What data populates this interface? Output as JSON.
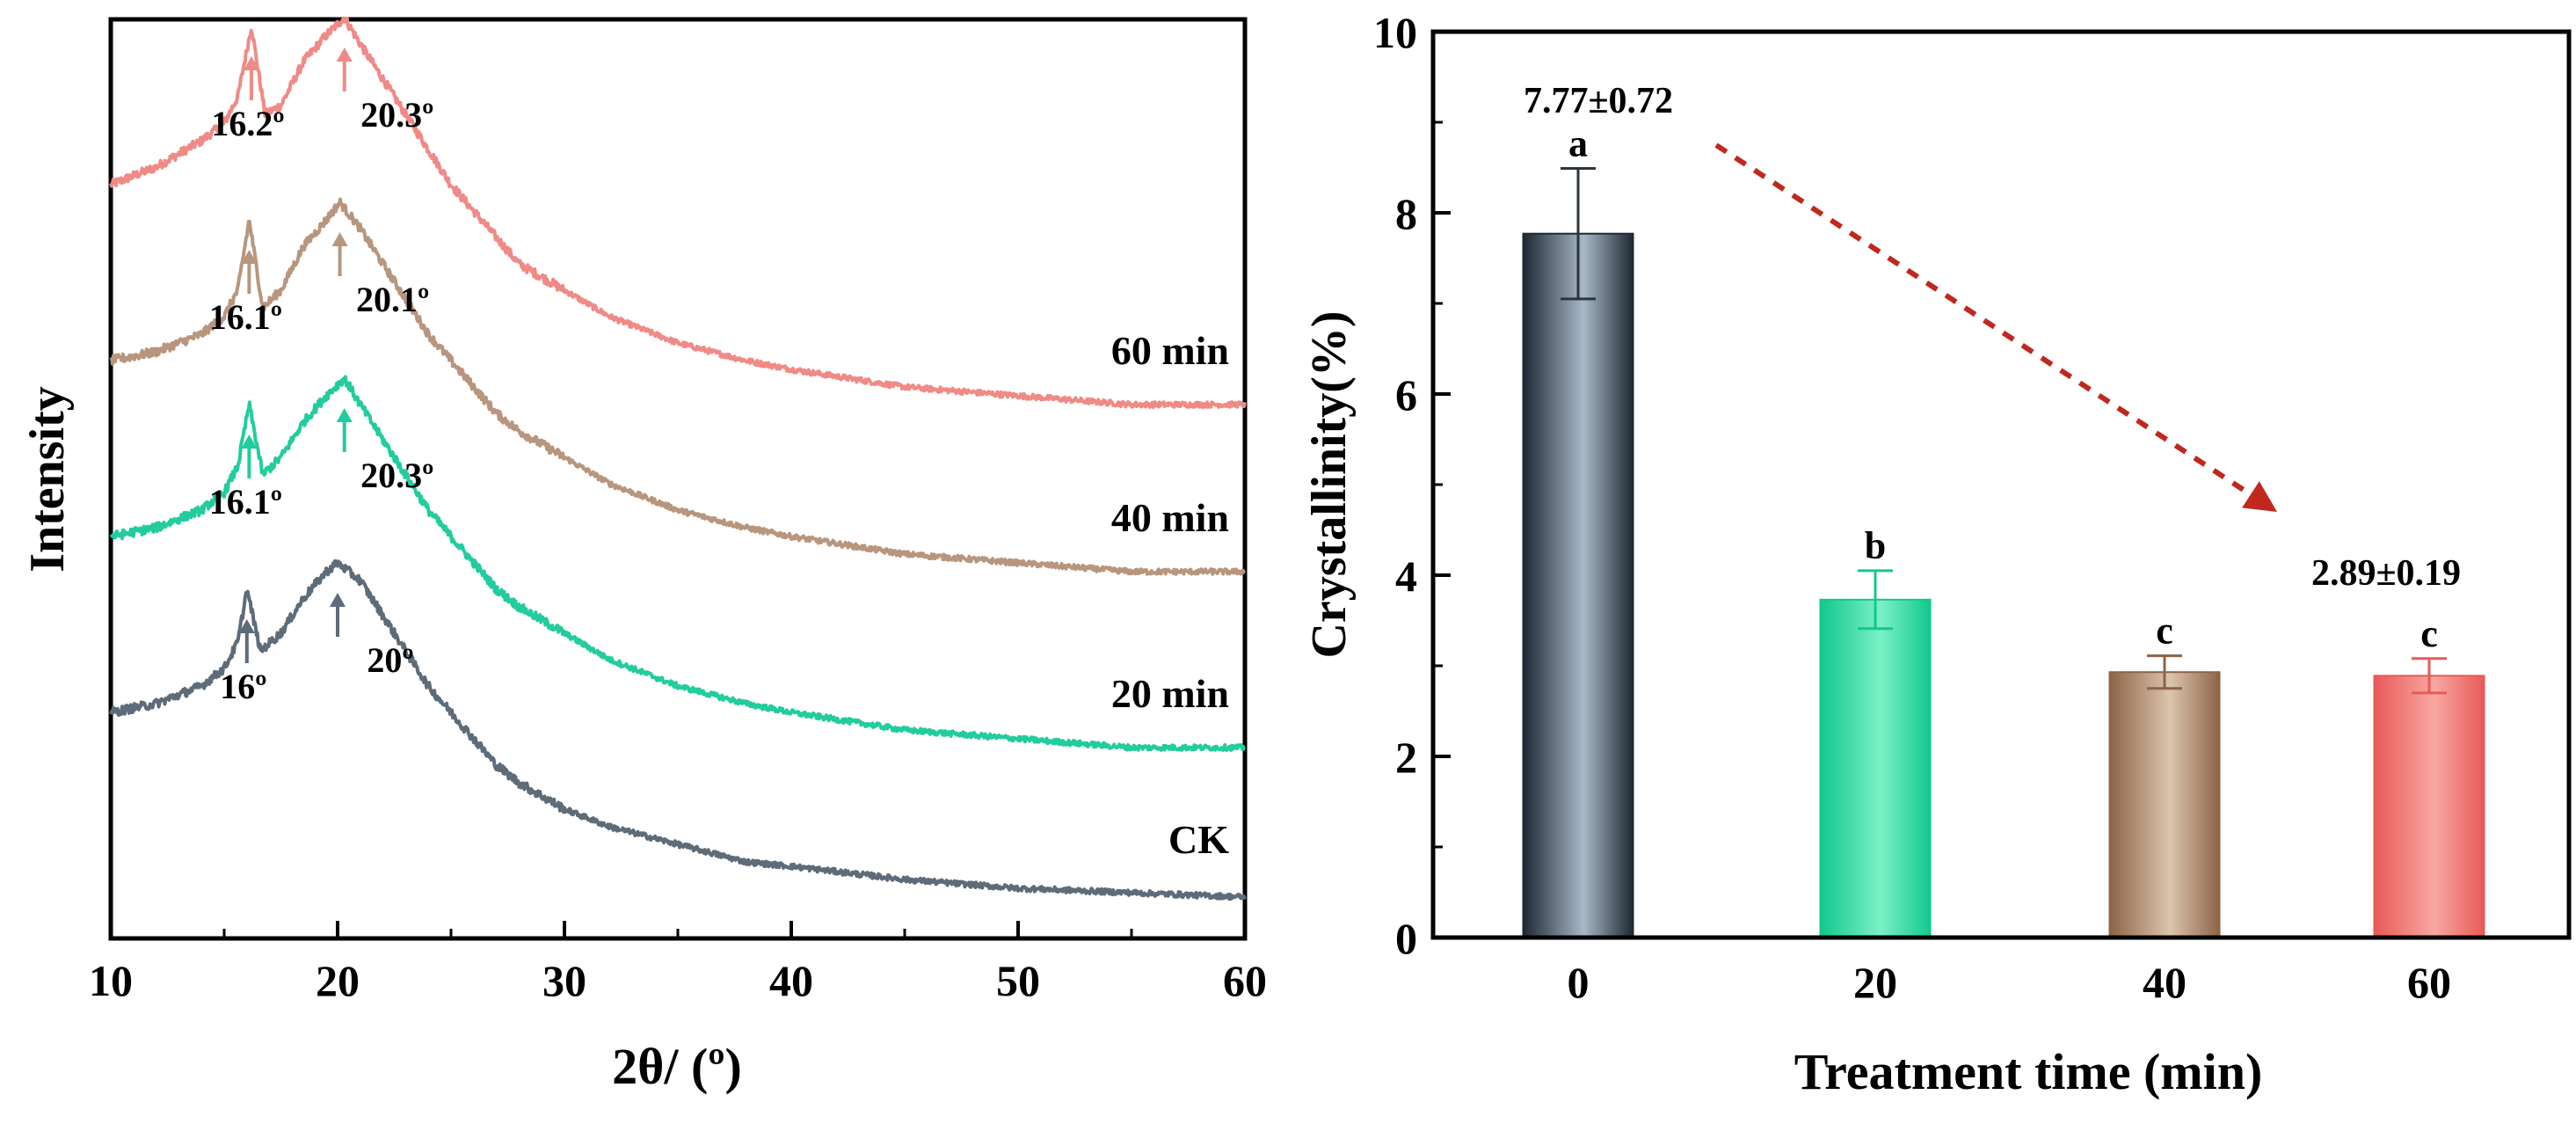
{
  "chart_data": [
    {
      "type": "line",
      "xlabel": "2θ/ (º)",
      "ylabel": "Intensity",
      "xlim": [
        10,
        60
      ],
      "x_ticks": [
        "10",
        "20",
        "30",
        "40",
        "50",
        "60"
      ],
      "y_ticks_shown": false,
      "series": [
        {
          "name": "60 min",
          "color": "#f08a86",
          "x": [
            10,
            12,
            14,
            15,
            15.6,
            16.2,
            16.8,
            17.5,
            18.5,
            19.5,
            20.3,
            21,
            22,
            23,
            24,
            25,
            26,
            27,
            28,
            30,
            32,
            35,
            38,
            40,
            45,
            50,
            55,
            60
          ],
          "y": [
            0.8,
            0.82,
            0.85,
            0.87,
            0.9,
            0.98,
            0.88,
            0.89,
            0.94,
            0.97,
            0.99,
            0.96,
            0.92,
            0.88,
            0.84,
            0.8,
            0.77,
            0.74,
            0.71,
            0.68,
            0.65,
            0.62,
            0.6,
            0.59,
            0.57,
            0.56,
            0.55,
            0.55
          ],
          "peaks": [
            {
              "x": 16.2,
              "label": "16.2º"
            },
            {
              "x": 20.3,
              "label": "20.3º"
            }
          ]
        },
        {
          "name": "40 min",
          "color": "#b8967e",
          "x": [
            10,
            12,
            14,
            15,
            15.6,
            16.1,
            16.7,
            17.5,
            18.5,
            19.5,
            20.1,
            21,
            22,
            23,
            24,
            25,
            26,
            27,
            28,
            30,
            32,
            35,
            38,
            40,
            45,
            50,
            55,
            60
          ],
          "y": [
            0.6,
            0.61,
            0.63,
            0.65,
            0.68,
            0.76,
            0.66,
            0.68,
            0.73,
            0.76,
            0.78,
            0.75,
            0.71,
            0.67,
            0.63,
            0.6,
            0.57,
            0.54,
            0.52,
            0.49,
            0.46,
            0.43,
            0.41,
            0.4,
            0.38,
            0.37,
            0.36,
            0.36
          ],
          "peaks": [
            {
              "x": 16.1,
              "label": "16.1º"
            },
            {
              "x": 20.1,
              "label": "20.1º"
            }
          ]
        },
        {
          "name": "20 min",
          "color": "#22cc9e",
          "x": [
            10,
            12,
            14,
            15,
            15.6,
            16.1,
            16.7,
            17.5,
            18.5,
            19.5,
            20.3,
            21,
            22,
            23,
            24,
            25,
            26,
            27,
            28,
            30,
            32,
            35,
            38,
            40,
            45,
            50,
            55,
            60
          ],
          "y": [
            0.4,
            0.41,
            0.43,
            0.45,
            0.48,
            0.55,
            0.47,
            0.49,
            0.53,
            0.56,
            0.58,
            0.55,
            0.51,
            0.47,
            0.43,
            0.4,
            0.37,
            0.34,
            0.32,
            0.29,
            0.26,
            0.23,
            0.21,
            0.2,
            0.18,
            0.17,
            0.16,
            0.16
          ],
          "peaks": [
            {
              "x": 16.1,
              "label": "16.1º"
            },
            {
              "x": 20.3,
              "label": "20.3º"
            }
          ]
        },
        {
          "name": "CK",
          "color": "#5e6b78",
          "x": [
            10,
            12,
            14,
            15,
            15.6,
            16,
            16.6,
            17.5,
            18.5,
            19.5,
            20,
            21,
            22,
            23,
            24,
            25,
            26,
            27,
            28,
            30,
            32,
            35,
            38,
            40,
            45,
            50,
            55,
            60
          ],
          "y": [
            0.2,
            0.21,
            0.23,
            0.25,
            0.28,
            0.34,
            0.27,
            0.29,
            0.33,
            0.36,
            0.37,
            0.35,
            0.31,
            0.27,
            0.23,
            0.2,
            0.17,
            0.14,
            0.12,
            0.09,
            0.07,
            0.05,
            0.03,
            0.025,
            0.01,
            0.0,
            -0.005,
            -0.01
          ],
          "peaks": [
            {
              "x": 16,
              "label": "16º"
            },
            {
              "x": 20,
              "label": "20º"
            }
          ]
        }
      ]
    },
    {
      "type": "bar",
      "xlabel": "Treatment time (min)",
      "ylabel": "Crystallinity(%)",
      "ylim": [
        0,
        10
      ],
      "y_ticks": [
        "0",
        "2",
        "4",
        "6",
        "8",
        "10"
      ],
      "categories": [
        "0",
        "20",
        "40",
        "60"
      ],
      "values": [
        7.77,
        3.73,
        2.93,
        2.89
      ],
      "errors": [
        0.72,
        0.32,
        0.18,
        0.19
      ],
      "letters": [
        "a",
        "b",
        "c",
        "c"
      ],
      "colors": [
        {
          "edge": "#1e2833",
          "mid": "#a9b8c7"
        },
        {
          "edge": "#12c88e",
          "mid": "#7bf0c6"
        },
        {
          "edge": "#8c6448",
          "mid": "#dcc4ad"
        },
        {
          "edge": "#e85a57",
          "mid": "#f8a7a2"
        }
      ],
      "annotations": [
        "7.77±0.72",
        "2.89±0.19"
      ],
      "trend_arrow_color": "#c0281e"
    }
  ]
}
